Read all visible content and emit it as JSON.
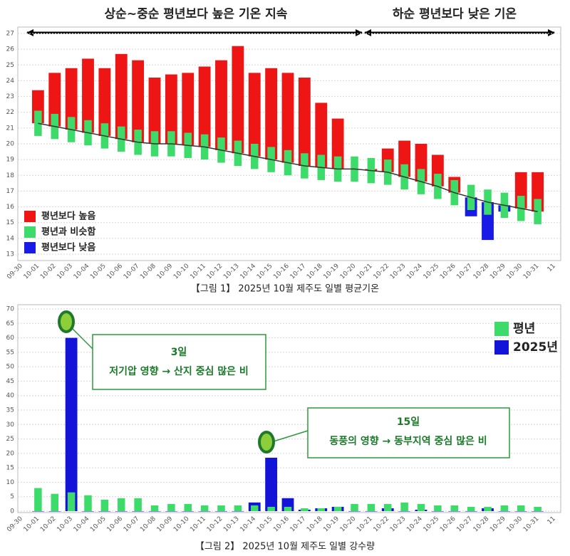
{
  "chart_data": [
    {
      "type": "bar",
      "annotations": [
        "상순~중순 평년보다 높은 기온 지속",
        "하순 평년보다 낮은 기온"
      ],
      "caption": "【그림 1】 2025년 10월 제주도 일별 평균기온",
      "categories": [
        "09-30",
        "10-01",
        "10-02",
        "10-03",
        "10-04",
        "10-05",
        "10-06",
        "10-07",
        "10-08",
        "10-09",
        "10-10",
        "10-11",
        "10-12",
        "10-13",
        "10-14",
        "10-15",
        "10-16",
        "10-17",
        "10-18",
        "10-19",
        "10-20",
        "10-21",
        "10-22",
        "10-23",
        "10-24",
        "10-25",
        "10-26",
        "10-27",
        "10-28",
        "10-29",
        "10-30",
        "10-31",
        "11"
      ],
      "series": [
        {
          "name": "평년보다 높음",
          "color": "#ee1515",
          "values": [
            null,
            23.4,
            24.5,
            24.8,
            25.4,
            24.8,
            25.7,
            25.3,
            24.2,
            24.4,
            24.5,
            24.9,
            25.3,
            26.2,
            24.5,
            24.8,
            24.5,
            24.2,
            22.6,
            21.6,
            null,
            18.4,
            19.7,
            20.2,
            20.0,
            19.3,
            17.9,
            null,
            null,
            null,
            18.2,
            18.2,
            null
          ]
        },
        {
          "name": "평년과 비슷함",
          "color": "#3ddc6a",
          "low": [
            null,
            20.5,
            20.3,
            20.1,
            19.9,
            19.7,
            19.5,
            19.3,
            19.2,
            19.2,
            19.1,
            19.0,
            18.8,
            18.6,
            18.4,
            18.2,
            18.0,
            17.8,
            17.7,
            17.6,
            17.6,
            17.5,
            17.4,
            17.1,
            16.8,
            16.5,
            16.1,
            15.8,
            15.5,
            15.3,
            15.1,
            14.9,
            null
          ],
          "high": [
            null,
            22.1,
            21.9,
            21.7,
            21.5,
            21.3,
            21.1,
            20.9,
            20.8,
            20.8,
            20.7,
            20.6,
            20.4,
            20.2,
            20.0,
            19.8,
            19.6,
            19.4,
            19.3,
            19.2,
            19.2,
            19.1,
            19.0,
            18.7,
            18.4,
            18.1,
            17.7,
            17.4,
            17.1,
            16.9,
            16.7,
            16.5,
            null
          ]
        },
        {
          "name": "평년보다 낮음",
          "color": "#1a1ae6",
          "values": [
            null,
            null,
            null,
            null,
            null,
            null,
            null,
            null,
            null,
            null,
            null,
            null,
            null,
            null,
            null,
            null,
            null,
            null,
            null,
            null,
            null,
            null,
            null,
            null,
            null,
            null,
            null,
            15.4,
            13.9,
            15.7,
            null,
            null,
            null
          ]
        }
      ],
      "normal": {
        "color": "#333333",
        "values": [
          null,
          21.3,
          21.1,
          20.9,
          20.7,
          20.5,
          20.3,
          20.1,
          20.0,
          20.0,
          19.9,
          19.8,
          19.6,
          19.4,
          19.2,
          19.0,
          18.8,
          18.6,
          18.5,
          18.4,
          18.4,
          18.3,
          18.2,
          17.9,
          17.6,
          17.3,
          16.9,
          16.6,
          16.3,
          16.1,
          15.9,
          15.7,
          null
        ]
      },
      "ylim": [
        13,
        27
      ],
      "yticks": [
        13,
        14,
        15,
        16,
        17,
        18,
        19,
        20,
        21,
        22,
        23,
        24,
        25,
        26,
        27
      ],
      "grid": true,
      "legend": "lower left"
    },
    {
      "type": "bar",
      "caption": "【그림 2】 2025년 10월 제주도 일별 강수량",
      "annotations": [
        {
          "title": "3일",
          "text": "저기압 영향 → 산지 중심 많은 비"
        },
        {
          "title": "15일",
          "text": "동풍의 영향 → 동부지역  중심 많은 비"
        }
      ],
      "categories": [
        "09-30",
        "10-01",
        "10-02",
        "10-03",
        "10-04",
        "10-05",
        "10-06",
        "10-07",
        "10-08",
        "10-09",
        "10-10",
        "10-11",
        "10-12",
        "10-13",
        "10-14",
        "10-15",
        "10-16",
        "10-17",
        "10-18",
        "10-19",
        "10-20",
        "10-21",
        "10-22",
        "10-23",
        "10-24",
        "10-25",
        "10-26",
        "10-27",
        "10-28",
        "10-29",
        "10-30",
        "10-31",
        "11"
      ],
      "series": [
        {
          "name": "평년",
          "color": "#3ddc6a",
          "values": [
            null,
            8,
            6,
            6.5,
            5.5,
            4,
            4.5,
            4.5,
            2,
            2.5,
            2.5,
            2,
            2,
            2,
            2,
            1.5,
            1.5,
            1,
            1,
            1.5,
            2.5,
            2.5,
            2.5,
            3,
            2.5,
            2,
            2,
            1.5,
            1.5,
            2,
            2,
            1.5,
            null
          ]
        },
        {
          "name": "2025년",
          "color": "#1414d8",
          "values": [
            null,
            0,
            0,
            60,
            0,
            0,
            0,
            0,
            0,
            0,
            0,
            0,
            0,
            0,
            3,
            18.5,
            4.5,
            0.5,
            1,
            1.5,
            0,
            0,
            1,
            0,
            0.5,
            0,
            0,
            0,
            1,
            0,
            0,
            0,
            null
          ]
        }
      ],
      "ylim": [
        0,
        70
      ],
      "yticks": [
        0,
        5,
        10,
        15,
        20,
        25,
        30,
        35,
        40,
        45,
        50,
        55,
        60,
        65,
        70
      ],
      "grid": true,
      "legend": "upper right"
    }
  ]
}
